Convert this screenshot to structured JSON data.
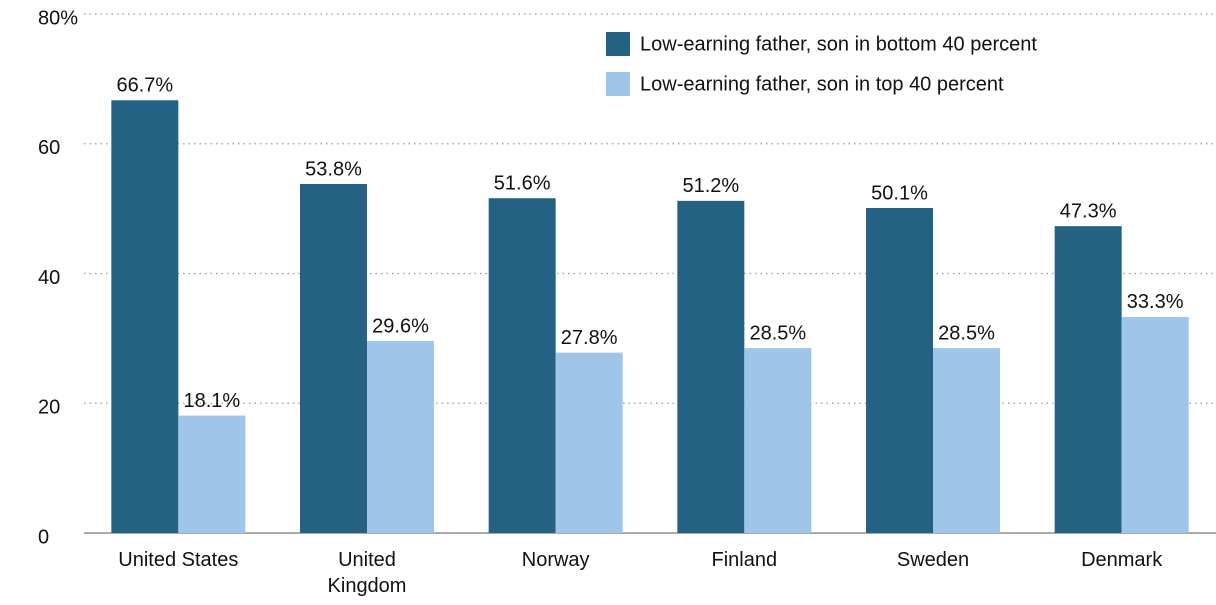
{
  "chart_data": {
    "type": "bar",
    "categories": [
      "United States",
      "United Kingdom",
      "Norway",
      "Finland",
      "Sweden",
      "Denmark"
    ],
    "series": [
      {
        "name": "Low-earning father, son in bottom 40 percent",
        "color": "#246183",
        "values": [
          66.7,
          53.8,
          51.6,
          51.2,
          50.1,
          47.3
        ],
        "value_labels": [
          "66.7%",
          "53.8%",
          "51.6%",
          "51.2%",
          "50.1%",
          "47.3%"
        ]
      },
      {
        "name": "Low-earning father, son in top 40 percent",
        "color": "#9fc5e8",
        "values": [
          18.1,
          29.6,
          27.8,
          28.5,
          28.5,
          33.3
        ],
        "value_labels": [
          "18.1%",
          "29.6%",
          "27.8%",
          "28.5%",
          "28.5%",
          "33.3%"
        ]
      }
    ],
    "ylim": [
      0,
      80
    ],
    "yticks": [
      0,
      20,
      40,
      60,
      {
        "value": 80,
        "label": "80%"
      }
    ],
    "grid": true,
    "legend": "top-right"
  }
}
